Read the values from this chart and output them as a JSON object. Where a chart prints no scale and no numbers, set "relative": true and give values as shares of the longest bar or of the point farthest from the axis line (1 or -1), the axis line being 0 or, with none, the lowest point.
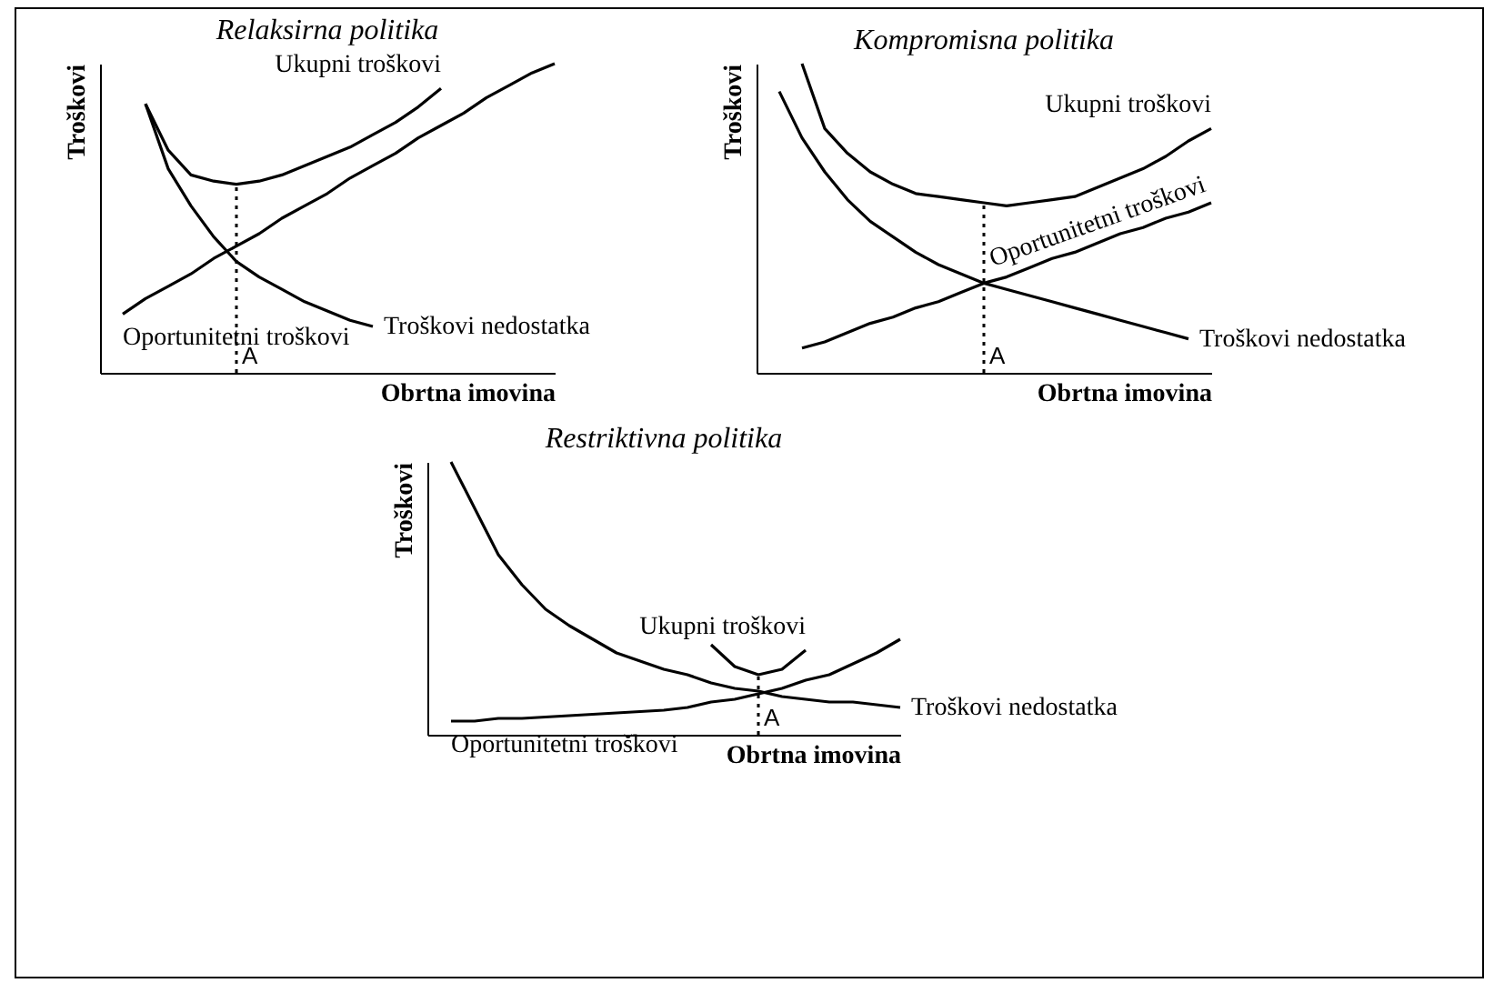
{
  "chart_data": [
    {
      "type": "line",
      "title": "Relaksirna politika",
      "xlabel": "Obrtna imovina",
      "ylabel": "Troškovi",
      "relative": true,
      "annotations": [
        "A"
      ],
      "categories": [
        null,
        null,
        null,
        null,
        null,
        null,
        null,
        null,
        null,
        null,
        null,
        null,
        null,
        null,
        null,
        null,
        null,
        null,
        null,
        null,
        null
      ],
      "series": [
        {
          "name": "Ukupni troškovi",
          "color": "#000000",
          "values": [
            null,
            null,
            0.87,
            0.72,
            0.64,
            0.62,
            0.61,
            0.62,
            0.64,
            0.67,
            0.7,
            0.73,
            0.77,
            0.81,
            0.86,
            0.92,
            null,
            null,
            null,
            null,
            null
          ]
        },
        {
          "name": "Oportunitetni troškovi",
          "color": "#000000",
          "values": [
            null,
            0.19,
            0.24,
            0.28,
            0.32,
            0.37,
            0.41,
            0.45,
            0.5,
            0.54,
            0.58,
            0.63,
            0.67,
            0.71,
            0.76,
            0.8,
            0.84,
            0.89,
            0.93,
            0.97,
            1.0
          ]
        },
        {
          "name": "Troškovi nedostatka",
          "color": "#000000",
          "values": [
            null,
            null,
            0.87,
            0.66,
            0.54,
            0.44,
            0.36,
            0.31,
            0.27,
            0.23,
            0.2,
            0.17,
            0.15,
            null,
            null,
            null,
            null,
            null,
            null,
            null,
            null
          ]
        }
      ]
    },
    {
      "type": "line",
      "title": "Kompromisna politika",
      "xlabel": "Obrtna imovina",
      "ylabel": "Troškovi",
      "relative": true,
      "annotations": [
        "A"
      ],
      "categories": [
        null,
        null,
        null,
        null,
        null,
        null,
        null,
        null,
        null,
        null,
        null,
        null,
        null,
        null,
        null,
        null,
        null,
        null,
        null,
        null,
        null
      ],
      "series": [
        {
          "name": "Ukupni troškovi",
          "color": "#000000",
          "values": [
            null,
            null,
            1.0,
            0.79,
            0.71,
            0.65,
            0.61,
            0.58,
            0.57,
            0.56,
            0.55,
            0.54,
            0.55,
            0.56,
            0.57,
            0.6,
            0.63,
            0.66,
            0.7,
            0.75,
            0.79
          ]
        },
        {
          "name": "Oportunitetni troškovi",
          "color": "#000000",
          "values": [
            null,
            null,
            0.08,
            0.1,
            0.13,
            0.16,
            0.18,
            0.21,
            0.23,
            0.26,
            0.29,
            0.31,
            0.34,
            0.37,
            0.39,
            0.42,
            0.45,
            0.47,
            0.5,
            0.52,
            0.55
          ]
        },
        {
          "name": "Troškovi nedostatka",
          "color": "#000000",
          "values": [
            null,
            0.91,
            0.76,
            0.65,
            0.56,
            0.49,
            0.44,
            0.39,
            0.35,
            0.32,
            0.29,
            0.27,
            0.25,
            0.23,
            0.21,
            0.19,
            0.17,
            0.15,
            0.13,
            0.11,
            null
          ]
        }
      ]
    },
    {
      "type": "line",
      "title": "Restriktivna politika",
      "xlabel": "Obrtna imovina",
      "ylabel": "Troškovi",
      "relative": true,
      "annotations": [
        "A"
      ],
      "categories": [
        null,
        null,
        null,
        null,
        null,
        null,
        null,
        null,
        null,
        null,
        null,
        null,
        null,
        null,
        null,
        null,
        null,
        null,
        null,
        null,
        null
      ],
      "series": [
        {
          "name": "Ukupni troškovi",
          "color": "#000000",
          "values": [
            null,
            null,
            null,
            null,
            null,
            null,
            null,
            null,
            null,
            null,
            null,
            null,
            0.33,
            0.25,
            0.22,
            0.24,
            0.31,
            null,
            null,
            null,
            null
          ]
        },
        {
          "name": "Oportunitetni troškovi",
          "color": "#000000",
          "values": [
            null,
            0.05,
            0.05,
            0.06,
            0.06,
            0.065,
            0.07,
            0.075,
            0.08,
            0.085,
            0.09,
            0.1,
            0.12,
            0.13,
            0.15,
            0.17,
            0.2,
            0.22,
            0.26,
            0.3,
            0.35
          ]
        },
        {
          "name": "Troškovi nedostatka",
          "color": "#000000",
          "values": [
            null,
            1.0,
            0.83,
            0.66,
            0.55,
            0.46,
            0.4,
            0.35,
            0.3,
            0.27,
            0.24,
            0.22,
            0.19,
            0.17,
            0.16,
            0.14,
            0.13,
            0.12,
            0.12,
            0.11,
            0.1
          ]
        }
      ]
    }
  ]
}
